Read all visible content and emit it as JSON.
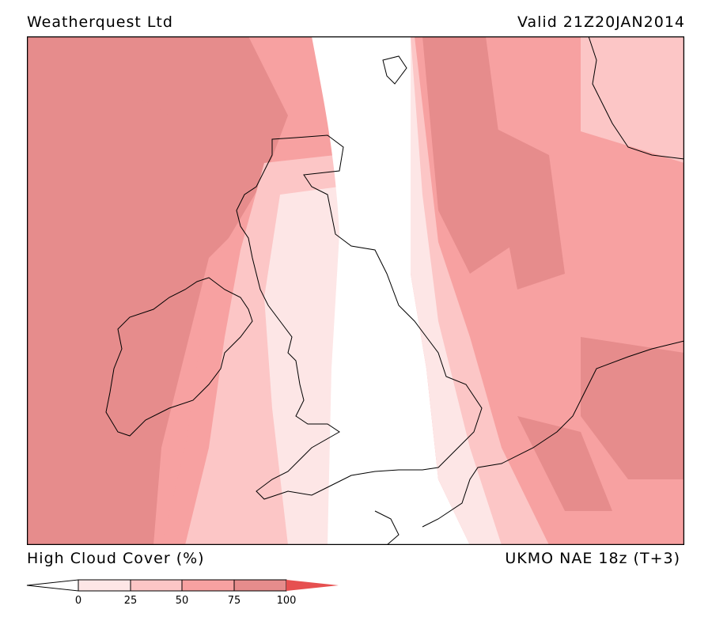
{
  "header": {
    "left": "Weatherquest Ltd",
    "right": "Valid 21Z20JAN2014"
  },
  "footer": {
    "title": "High Cloud Cover (%)",
    "model": "UKMO NAE 18z (T+3)"
  },
  "legend": {
    "ticks": [
      "0",
      "25",
      "50",
      "75",
      "100"
    ],
    "colors": [
      "#ffffff",
      "#fde6e6",
      "#fcc6c6",
      "#f7a1a1",
      "#e68c8c",
      "#e65050"
    ]
  }
}
